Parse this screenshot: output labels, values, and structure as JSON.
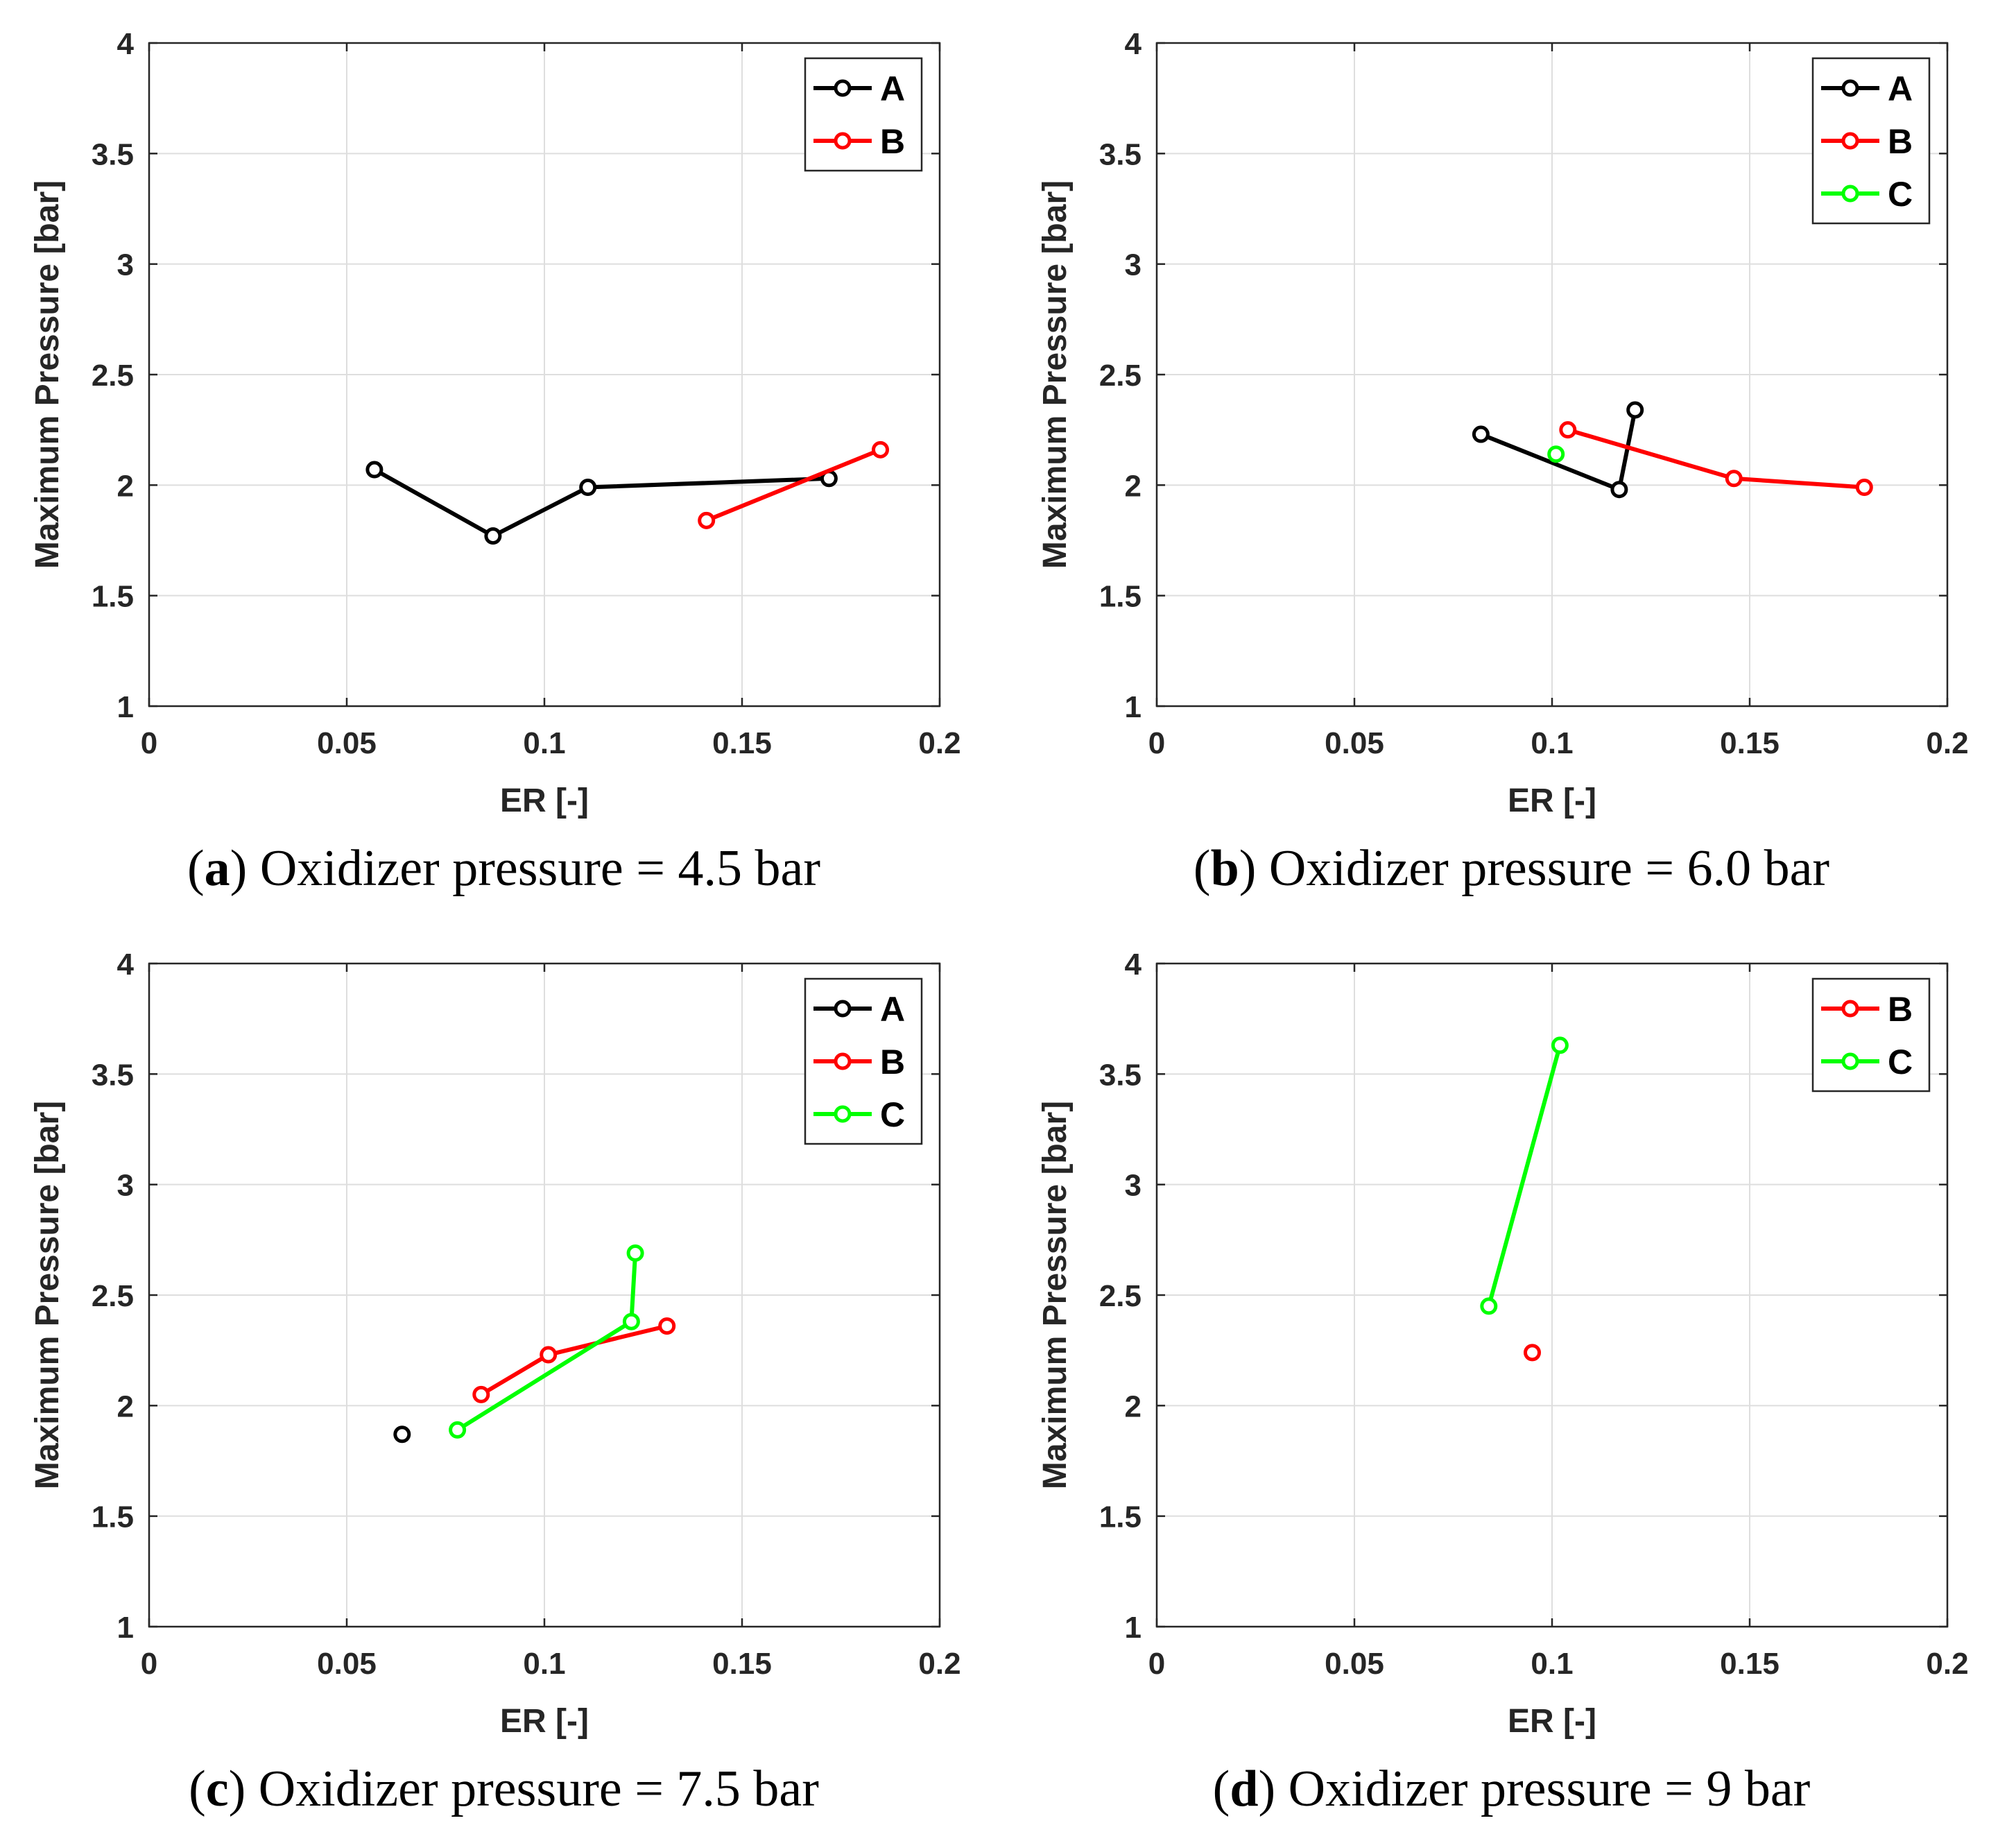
{
  "chart_data": [
    {
      "type": "line",
      "panel_letter": "a",
      "caption": "Oxidizer pressure = 4.5 bar",
      "xlabel": "ER [-]",
      "ylabel": "Maximum Pressure [bar]",
      "xlim": [
        0,
        0.2
      ],
      "ylim": [
        1,
        4
      ],
      "xticks": [
        "0",
        "0.05",
        "0.1",
        "0.15",
        "0.2"
      ],
      "yticks": [
        "1",
        "1.5",
        "2",
        "2.5",
        "3",
        "3.5",
        "4"
      ],
      "grid": true,
      "legend_position": "top-right",
      "series": [
        {
          "name": "A",
          "color": "#000000",
          "x": [
            0.057,
            0.087,
            0.111,
            0.172
          ],
          "y": [
            2.07,
            1.77,
            1.99,
            2.03
          ]
        },
        {
          "name": "B",
          "color": "#ff0000",
          "x": [
            0.141,
            0.185
          ],
          "y": [
            1.84,
            2.16
          ]
        }
      ]
    },
    {
      "type": "line",
      "panel_letter": "b",
      "caption": "Oxidizer pressure = 6.0 bar",
      "xlabel": "ER [-]",
      "ylabel": "Maximum Pressure [bar]",
      "xlim": [
        0,
        0.2
      ],
      "ylim": [
        1,
        4
      ],
      "xticks": [
        "0",
        "0.05",
        "0.1",
        "0.15",
        "0.2"
      ],
      "yticks": [
        "1",
        "1.5",
        "2",
        "2.5",
        "3",
        "3.5",
        "4"
      ],
      "grid": true,
      "legend_position": "top-right",
      "series": [
        {
          "name": "A",
          "color": "#000000",
          "x": [
            0.082,
            0.117,
            0.121
          ],
          "y": [
            2.23,
            1.98,
            2.34
          ]
        },
        {
          "name": "B",
          "color": "#ff0000",
          "x": [
            0.104,
            0.146,
            0.179
          ],
          "y": [
            2.25,
            2.03,
            1.99
          ]
        },
        {
          "name": "C",
          "color": "#00ff00",
          "x": [
            0.101
          ],
          "y": [
            2.14
          ]
        }
      ]
    },
    {
      "type": "line",
      "panel_letter": "c",
      "caption": "Oxidizer pressure = 7.5 bar",
      "xlabel": "ER [-]",
      "ylabel": "Maximum Pressure [bar]",
      "xlim": [
        0,
        0.2
      ],
      "ylim": [
        1,
        4
      ],
      "xticks": [
        "0",
        "0.05",
        "0.1",
        "0.15",
        "0.2"
      ],
      "yticks": [
        "1",
        "1.5",
        "2",
        "2.5",
        "3",
        "3.5",
        "4"
      ],
      "grid": true,
      "legend_position": "top-right",
      "series": [
        {
          "name": "A",
          "color": "#000000",
          "x": [
            0.064
          ],
          "y": [
            1.87
          ]
        },
        {
          "name": "B",
          "color": "#ff0000",
          "x": [
            0.084,
            0.101,
            0.131
          ],
          "y": [
            2.05,
            2.23,
            2.36
          ]
        },
        {
          "name": "C",
          "color": "#00ff00",
          "x": [
            0.078,
            0.122,
            0.123
          ],
          "y": [
            1.89,
            2.38,
            2.69
          ]
        }
      ]
    },
    {
      "type": "line",
      "panel_letter": "d",
      "caption": "Oxidizer pressure = 9 bar",
      "xlabel": "ER [-]",
      "ylabel": "Maximum Pressure [bar]",
      "xlim": [
        0,
        0.2
      ],
      "ylim": [
        1,
        4
      ],
      "xticks": [
        "0",
        "0.05",
        "0.1",
        "0.15",
        "0.2"
      ],
      "yticks": [
        "1",
        "1.5",
        "2",
        "2.5",
        "3",
        "3.5",
        "4"
      ],
      "grid": true,
      "legend_position": "top-right",
      "series": [
        {
          "name": "B",
          "color": "#ff0000",
          "x": [
            0.095
          ],
          "y": [
            2.24
          ]
        },
        {
          "name": "C",
          "color": "#00ff00",
          "x": [
            0.084,
            0.102
          ],
          "y": [
            2.45,
            3.63
          ]
        }
      ]
    }
  ]
}
